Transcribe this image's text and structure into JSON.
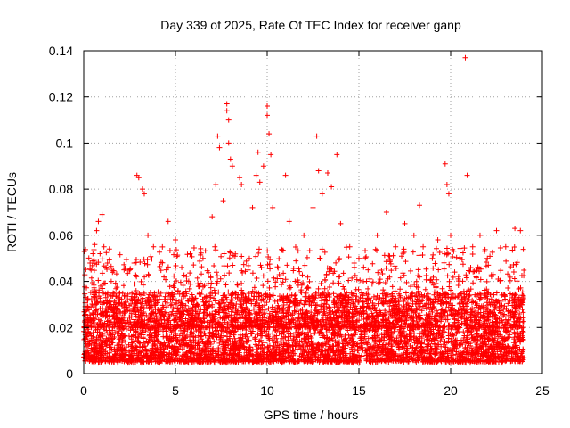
{
  "chart_data": {
    "type": "scatter",
    "title": "Day 339 of 2025, Rate Of TEC Index for receiver ganp",
    "xlabel": "GPS time / hours",
    "ylabel": "ROTI / TECUs",
    "xlim": [
      0,
      25
    ],
    "ylim": [
      0,
      0.14
    ],
    "x_ticks": [
      "0",
      "5",
      "10",
      "15",
      "20",
      "25"
    ],
    "y_ticks": [
      "0",
      "0.02",
      "0.04",
      "0.06",
      "0.08",
      "0.1",
      "0.12",
      "0.14"
    ],
    "x_tick_values": [
      0,
      5,
      10,
      15,
      20,
      25
    ],
    "y_tick_values": [
      0,
      0.02,
      0.04,
      0.06,
      0.08,
      0.1,
      0.12,
      0.14
    ],
    "grid": true,
    "marker": "+",
    "marker_color": "#ff0000",
    "series": [
      {
        "name": "ROTI",
        "points": [
          [
            0.1,
            0.033
          ],
          [
            0.2,
            0.028
          ],
          [
            0.4,
            0.045
          ],
          [
            0.5,
            0.052
          ],
          [
            0.6,
            0.056
          ],
          [
            0.7,
            0.062
          ],
          [
            0.8,
            0.066
          ],
          [
            1.0,
            0.069
          ],
          [
            1.1,
            0.055
          ],
          [
            1.5,
            0.04
          ],
          [
            2.2,
            0.045
          ],
          [
            2.9,
            0.086
          ],
          [
            3.0,
            0.085
          ],
          [
            3.2,
            0.08
          ],
          [
            3.3,
            0.078
          ],
          [
            3.5,
            0.06
          ],
          [
            3.8,
            0.055
          ],
          [
            4.5,
            0.045
          ],
          [
            4.6,
            0.066
          ],
          [
            5.0,
            0.058
          ],
          [
            5.8,
            0.052
          ],
          [
            6.5,
            0.05
          ],
          [
            7.0,
            0.068
          ],
          [
            7.2,
            0.082
          ],
          [
            7.3,
            0.103
          ],
          [
            7.4,
            0.098
          ],
          [
            7.6,
            0.075
          ],
          [
            7.8,
            0.117
          ],
          [
            7.8,
            0.114
          ],
          [
            7.9,
            0.11
          ],
          [
            7.9,
            0.1
          ],
          [
            8.0,
            0.093
          ],
          [
            8.1,
            0.09
          ],
          [
            8.5,
            0.085
          ],
          [
            8.6,
            0.082
          ],
          [
            9.2,
            0.072
          ],
          [
            9.4,
            0.086
          ],
          [
            9.5,
            0.096
          ],
          [
            9.6,
            0.083
          ],
          [
            9.8,
            0.09
          ],
          [
            10.0,
            0.116
          ],
          [
            10.0,
            0.112
          ],
          [
            10.1,
            0.104
          ],
          [
            10.2,
            0.095
          ],
          [
            10.3,
            0.072
          ],
          [
            11.0,
            0.086
          ],
          [
            11.2,
            0.066
          ],
          [
            12.0,
            0.06
          ],
          [
            12.5,
            0.072
          ],
          [
            12.7,
            0.103
          ],
          [
            12.8,
            0.088
          ],
          [
            13.0,
            0.078
          ],
          [
            13.3,
            0.087
          ],
          [
            13.5,
            0.081
          ],
          [
            13.8,
            0.095
          ],
          [
            14.0,
            0.065
          ],
          [
            14.5,
            0.055
          ],
          [
            15.0,
            0.05
          ],
          [
            15.5,
            0.045
          ],
          [
            16.0,
            0.06
          ],
          [
            16.5,
            0.07
          ],
          [
            17.0,
            0.055
          ],
          [
            17.5,
            0.065
          ],
          [
            18.0,
            0.06
          ],
          [
            18.3,
            0.073
          ],
          [
            18.5,
            0.055
          ],
          [
            19.0,
            0.05
          ],
          [
            19.3,
            0.058
          ],
          [
            19.7,
            0.091
          ],
          [
            19.8,
            0.082
          ],
          [
            19.9,
            0.078
          ],
          [
            20.0,
            0.06
          ],
          [
            20.5,
            0.05
          ],
          [
            20.8,
            0.137
          ],
          [
            20.9,
            0.086
          ],
          [
            21.2,
            0.055
          ],
          [
            21.6,
            0.06
          ],
          [
            22.0,
            0.05
          ],
          [
            22.5,
            0.062
          ],
          [
            23.0,
            0.055
          ],
          [
            23.5,
            0.063
          ],
          [
            23.8,
            0.062
          ]
        ],
        "dense_band": {
          "description": "dense cluster of values between roughly 0.005 and 0.035 across the whole day",
          "y_range": [
            0.005,
            0.035
          ]
        }
      }
    ]
  }
}
